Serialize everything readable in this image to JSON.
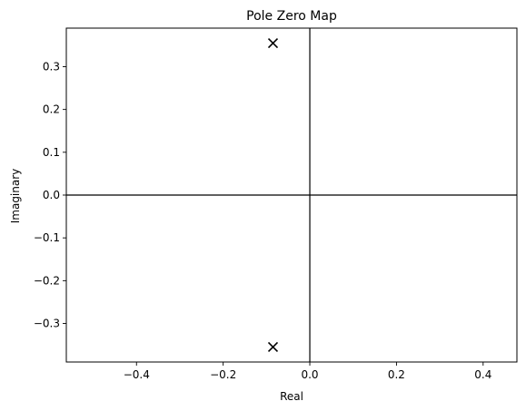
{
  "chart_data": {
    "type": "scatter",
    "title": "Pole Zero Map",
    "xlabel": "Real",
    "ylabel": "Imaginary",
    "xlim": [
      -0.562,
      0.478
    ],
    "ylim": [
      -0.39,
      0.39
    ],
    "x_ticks": [
      {
        "value": -0.4,
        "label": "−0.4"
      },
      {
        "value": -0.2,
        "label": "−0.2"
      },
      {
        "value": 0.0,
        "label": "0.0"
      },
      {
        "value": 0.2,
        "label": "0.2"
      },
      {
        "value": 0.4,
        "label": "0.4"
      }
    ],
    "y_ticks": [
      {
        "value": 0.3,
        "label": "0.3"
      },
      {
        "value": 0.2,
        "label": "0.2"
      },
      {
        "value": 0.1,
        "label": "0.1"
      },
      {
        "value": 0.0,
        "label": "0.0"
      },
      {
        "value": -0.1,
        "label": "−0.1"
      },
      {
        "value": -0.2,
        "label": "−0.2"
      },
      {
        "value": -0.3,
        "label": "−0.3"
      }
    ],
    "grid": false,
    "reference_lines": [
      "x=0",
      "y=0"
    ],
    "series": [
      {
        "marker": "x",
        "color": "#000000",
        "points": [
          {
            "x": -0.085,
            "y": 0.355
          },
          {
            "x": -0.085,
            "y": -0.355
          }
        ]
      }
    ]
  }
}
